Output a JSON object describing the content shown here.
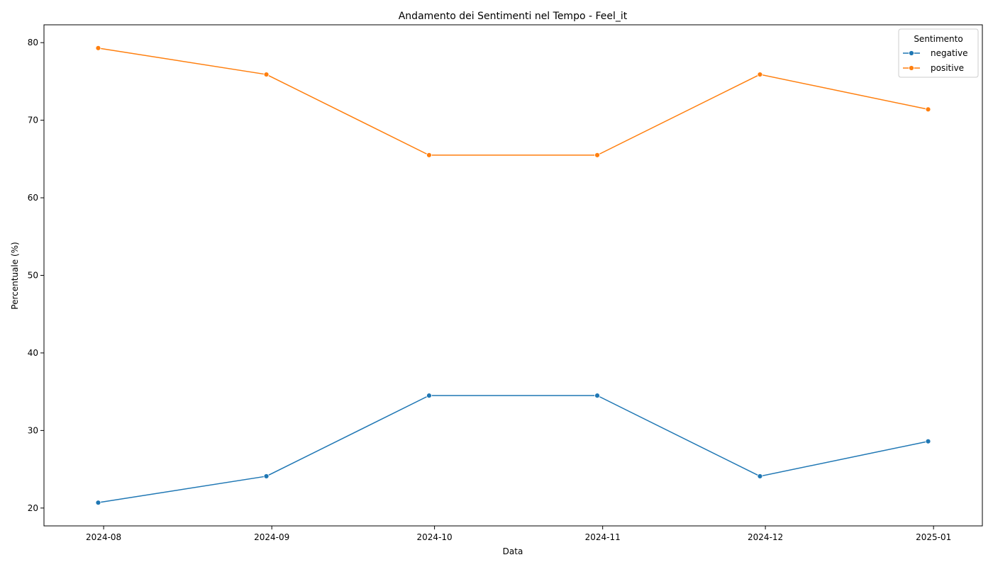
{
  "chart_data": {
    "type": "line",
    "title": "Andamento dei Sentimenti nel Tempo - Feel_it",
    "xlabel": "Data",
    "ylabel": "Percentuale (%)",
    "x": [
      "2024-07-31",
      "2024-08-31",
      "2024-09-30",
      "2024-10-31",
      "2024-11-30",
      "2024-12-31"
    ],
    "x_ticks": [
      "2024-08-01",
      "2024-09-01",
      "2024-10-01",
      "2024-11-01",
      "2024-12-01",
      "2025-01-01"
    ],
    "x_tick_labels": [
      "2024-08",
      "2024-09",
      "2024-10",
      "2024-11",
      "2024-12",
      "2025-01"
    ],
    "xlim": [
      "2024-07-21",
      "2025-01-10"
    ],
    "y_ticks": [
      20,
      30,
      40,
      50,
      60,
      70,
      80
    ],
    "ylim": [
      17.7,
      82.3
    ],
    "legend_title": "Sentimento",
    "legend_position": "top-right",
    "grid": false,
    "series": [
      {
        "name": "negative",
        "color": "#1f77b4",
        "values": [
          20.7,
          24.1,
          34.5,
          34.5,
          24.1,
          28.6
        ]
      },
      {
        "name": "positive",
        "color": "#ff7f0e",
        "values": [
          79.3,
          75.9,
          65.5,
          65.5,
          75.9,
          71.4
        ]
      }
    ]
  }
}
